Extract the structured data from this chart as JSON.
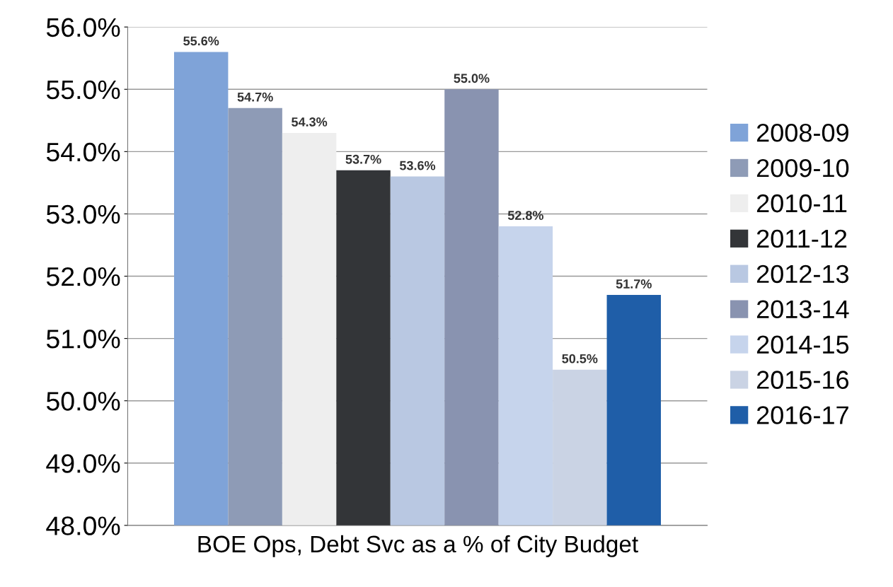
{
  "chart_data": {
    "type": "bar",
    "categories": [
      "BOE Ops, Debt Svc as a % of City Budget"
    ],
    "series": [
      {
        "name": "2008-09",
        "color": "#7fa3d8",
        "values": [
          55.6
        ],
        "value_labels": [
          "55.6%"
        ]
      },
      {
        "name": "2009-10",
        "color": "#8e9bb6",
        "values": [
          54.7
        ],
        "value_labels": [
          "54.7%"
        ]
      },
      {
        "name": "2010-11",
        "color": "#eeeeee",
        "values": [
          54.3
        ],
        "value_labels": [
          "54.3%"
        ]
      },
      {
        "name": "2011-12",
        "color": "#333538",
        "values": [
          53.7
        ],
        "value_labels": [
          "53.7%"
        ]
      },
      {
        "name": "2012-13",
        "color": "#b9c8e2",
        "values": [
          53.6
        ],
        "value_labels": [
          "53.6%"
        ]
      },
      {
        "name": "2013-14",
        "color": "#8993b0",
        "values": [
          55.0
        ],
        "value_labels": [
          "55.0%"
        ]
      },
      {
        "name": "2014-15",
        "color": "#c6d4ec",
        "values": [
          52.8
        ],
        "value_labels": [
          "52.8%"
        ]
      },
      {
        "name": "2015-16",
        "color": "#cad3e4",
        "values": [
          50.5
        ],
        "value_labels": [
          "50.5%"
        ]
      },
      {
        "name": "2016-17",
        "color": "#1f5ea8",
        "values": [
          51.7
        ],
        "value_labels": [
          "51.7%"
        ]
      }
    ],
    "ylim": [
      48,
      56
    ],
    "yticks": [
      {
        "value": 48,
        "label": "48.0%"
      },
      {
        "value": 49,
        "label": "49.0%"
      },
      {
        "value": 50,
        "label": "50.0%"
      },
      {
        "value": 51,
        "label": "51.0%"
      },
      {
        "value": 52,
        "label": "52.0%"
      },
      {
        "value": 53,
        "label": "53.0%"
      },
      {
        "value": 54,
        "label": "54.0%"
      },
      {
        "value": 55,
        "label": "55.0%"
      },
      {
        "value": 56,
        "label": "56.0%"
      }
    ],
    "grid": "y",
    "legend": "right"
  }
}
